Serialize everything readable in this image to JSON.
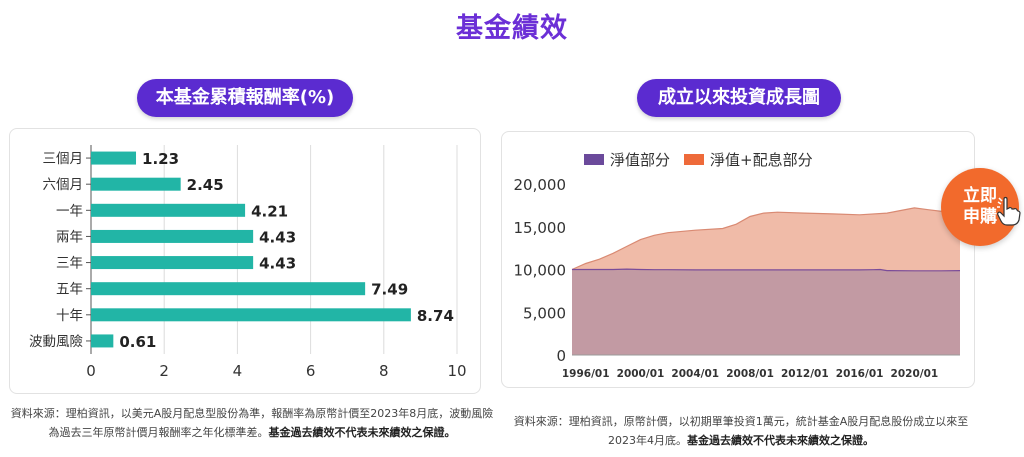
{
  "page": {
    "title": "基金績效",
    "left_heading": "本基金累積報酬率(%)",
    "right_heading": "成立以來投資成長圖",
    "left_note_prefix": "資料來源：理柏資訊，以美元A股月配息型股份為準，報酬率為原幣計價至2023年8月底，波動風險為過去三年原幣計價月報酬率之年化標準差。",
    "left_note_bold": "基金過去績效不代表未來績效之保證。",
    "right_note_prefix": "資料來源：理柏資訊，原幣計價，以初期單筆投資1萬元，統計基金A股月配息股份成立以來至2023年4月底。",
    "right_note_bold": "基金過去績效不代表未來績效之保證。",
    "apply_line1": "立即",
    "apply_line2": "申購",
    "hand_icon": "pointing-hand-icon"
  },
  "chart_data": [
    {
      "type": "bar",
      "orientation": "horizontal",
      "categories": [
        "三個月",
        "六個月",
        "一年",
        "兩年",
        "三年",
        "五年",
        "十年",
        "波動風險"
      ],
      "values": [
        1.23,
        2.45,
        4.21,
        4.43,
        4.43,
        7.49,
        8.74,
        0.61
      ],
      "xlim": [
        0,
        10
      ],
      "xticks": [
        0,
        2,
        4,
        6,
        8,
        10
      ],
      "grid": true,
      "bar_color": "#22b5a6"
    },
    {
      "type": "area",
      "x_tick_labels": [
        "1996/01",
        "2000/01",
        "2004/01",
        "2008/01",
        "2012/01",
        "2016/01",
        "2020/01"
      ],
      "x_range": [
        1995.0,
        2023.33
      ],
      "ylim": [
        0,
        20000
      ],
      "yticks": [
        0,
        5000,
        10000,
        15000,
        20000
      ],
      "ytick_labels": [
        "0",
        "5,000",
        "10,000",
        "15,000",
        "20,000"
      ],
      "legend_position": "top",
      "series": [
        {
          "name": "淨值部分",
          "color": "#6b4a9b",
          "x": [
            1995.0,
            1996.0,
            1997.0,
            1998.0,
            1999.0,
            2000.0,
            2001.0,
            2002.0,
            2004.0,
            2006.0,
            2008.0,
            2010.0,
            2012.0,
            2014.0,
            2016.0,
            2017.0,
            2017.5,
            2018.0,
            2020.0,
            2022.0,
            2023.33
          ],
          "values": [
            10000,
            10000,
            10000,
            10000,
            10050,
            10000,
            9980,
            9980,
            9950,
            9950,
            9950,
            9950,
            9950,
            9950,
            9950,
            9980,
            10000,
            9870,
            9850,
            9850,
            9870
          ]
        },
        {
          "name": "淨值+配息部分",
          "color": "#ee6a3a",
          "x": [
            1995.0,
            1996.0,
            1997.0,
            1998.0,
            1999.0,
            2000.0,
            2001.0,
            2002.0,
            2004.0,
            2006.0,
            2007.0,
            2008.0,
            2009.0,
            2010.0,
            2012.0,
            2014.0,
            2016.0,
            2018.0,
            2019.0,
            2020.0,
            2021.0,
            2022.0,
            2023.33
          ],
          "values": [
            10000,
            10700,
            11200,
            11900,
            12700,
            13500,
            14000,
            14300,
            14600,
            14800,
            15300,
            16200,
            16600,
            16700,
            16600,
            16500,
            16400,
            16600,
            16900,
            17200,
            17000,
            16800,
            16700
          ]
        }
      ]
    }
  ]
}
